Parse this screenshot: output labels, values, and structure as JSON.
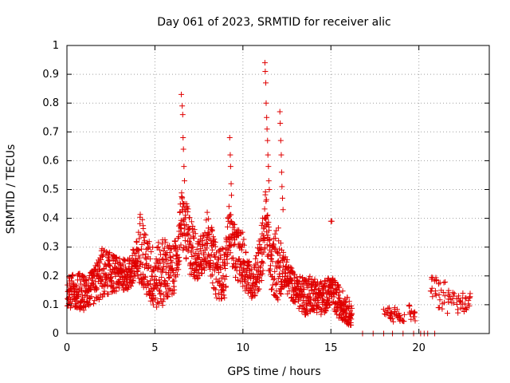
{
  "chart_data": {
    "type": "scatter",
    "marker": "plus",
    "title": "Day 061 of 2023, SRMTID for receiver alic",
    "xlabel": "GPS time / hours",
    "ylabel": "SRMTID / TECUs",
    "xlim": [
      0,
      24
    ],
    "ylim": [
      0,
      1
    ],
    "xticks": [
      0,
      5,
      10,
      15,
      20
    ],
    "xtick_labels": [
      "0",
      "5",
      "10",
      "15",
      "20"
    ],
    "yticks": [
      0,
      0.1,
      0.2,
      0.3,
      0.4,
      0.5,
      0.6,
      0.7,
      0.8,
      0.9,
      1
    ],
    "ytick_labels": [
      "0",
      "0.1",
      "0.2",
      "0.3",
      "0.4",
      "0.5",
      "0.6",
      "0.7",
      "0.8",
      "0.9",
      "1"
    ],
    "grid": true,
    "color": "#e00000",
    "series": [
      {
        "name": "SRMTID",
        "envelope": [
          [
            0.0,
            0.08,
            0.2
          ],
          [
            0.5,
            0.08,
            0.22
          ],
          [
            1.0,
            0.08,
            0.2
          ],
          [
            1.5,
            0.1,
            0.22
          ],
          [
            2.0,
            0.12,
            0.3
          ],
          [
            2.5,
            0.14,
            0.28
          ],
          [
            3.0,
            0.15,
            0.26
          ],
          [
            3.5,
            0.15,
            0.26
          ],
          [
            4.0,
            0.16,
            0.33
          ],
          [
            4.2,
            0.18,
            0.45
          ],
          [
            4.5,
            0.12,
            0.34
          ],
          [
            5.0,
            0.08,
            0.3
          ],
          [
            5.5,
            0.1,
            0.34
          ],
          [
            6.0,
            0.12,
            0.3
          ],
          [
            6.3,
            0.2,
            0.35
          ],
          [
            6.5,
            0.3,
            0.5
          ],
          [
            7.0,
            0.2,
            0.42
          ],
          [
            7.5,
            0.18,
            0.32
          ],
          [
            8.0,
            0.24,
            0.43
          ],
          [
            8.5,
            0.12,
            0.3
          ],
          [
            9.0,
            0.12,
            0.3
          ],
          [
            9.2,
            0.3,
            0.45
          ],
          [
            9.5,
            0.2,
            0.38
          ],
          [
            10.0,
            0.16,
            0.35
          ],
          [
            10.5,
            0.12,
            0.22
          ],
          [
            11.0,
            0.14,
            0.35
          ],
          [
            11.3,
            0.3,
            0.5
          ],
          [
            11.6,
            0.15,
            0.3
          ],
          [
            12.0,
            0.1,
            0.4
          ],
          [
            12.3,
            0.16,
            0.28
          ],
          [
            12.7,
            0.12,
            0.24
          ],
          [
            13.0,
            0.1,
            0.2
          ],
          [
            13.5,
            0.06,
            0.2
          ],
          [
            14.0,
            0.08,
            0.2
          ],
          [
            14.5,
            0.06,
            0.18
          ],
          [
            15.0,
            0.1,
            0.2
          ],
          [
            15.3,
            0.06,
            0.18
          ],
          [
            15.8,
            0.04,
            0.14
          ],
          [
            16.2,
            0.02,
            0.1
          ],
          [
            16.5,
            0.0,
            0.0
          ]
        ],
        "spikes": [
          [
            6.5,
            0.83
          ],
          [
            6.55,
            0.79
          ],
          [
            6.58,
            0.76
          ],
          [
            6.6,
            0.68
          ],
          [
            6.62,
            0.64
          ],
          [
            6.65,
            0.58
          ],
          [
            6.68,
            0.53
          ],
          [
            9.25,
            0.68
          ],
          [
            9.28,
            0.62
          ],
          [
            9.3,
            0.58
          ],
          [
            9.33,
            0.52
          ],
          [
            9.35,
            0.48
          ],
          [
            11.25,
            0.94
          ],
          [
            11.27,
            0.91
          ],
          [
            11.3,
            0.87
          ],
          [
            11.32,
            0.8
          ],
          [
            11.35,
            0.75
          ],
          [
            11.37,
            0.71
          ],
          [
            11.4,
            0.67
          ],
          [
            11.42,
            0.62
          ],
          [
            11.45,
            0.58
          ],
          [
            11.47,
            0.53
          ],
          [
            11.5,
            0.5
          ],
          [
            12.1,
            0.77
          ],
          [
            12.12,
            0.73
          ],
          [
            12.15,
            0.67
          ],
          [
            12.18,
            0.62
          ],
          [
            12.2,
            0.56
          ],
          [
            12.22,
            0.51
          ],
          [
            12.25,
            0.47
          ],
          [
            12.28,
            0.43
          ],
          [
            15.0,
            0.39
          ],
          [
            15.05,
            0.39
          ]
        ],
        "clusters": [
          [
            18.2,
            0.05,
            0.1
          ],
          [
            18.6,
            0.04,
            0.09
          ],
          [
            19.0,
            0.04,
            0.08
          ],
          [
            19.6,
            0.04,
            0.1
          ],
          [
            20.8,
            0.1,
            0.2
          ],
          [
            21.3,
            0.08,
            0.18
          ],
          [
            21.8,
            0.07,
            0.16
          ],
          [
            22.3,
            0.07,
            0.15
          ],
          [
            22.7,
            0.07,
            0.14
          ]
        ],
        "zeros": [
          16.8,
          17.4,
          18.0,
          18.5,
          19.1,
          19.7,
          20.1,
          20.3,
          20.5,
          20.9
        ]
      }
    ]
  }
}
